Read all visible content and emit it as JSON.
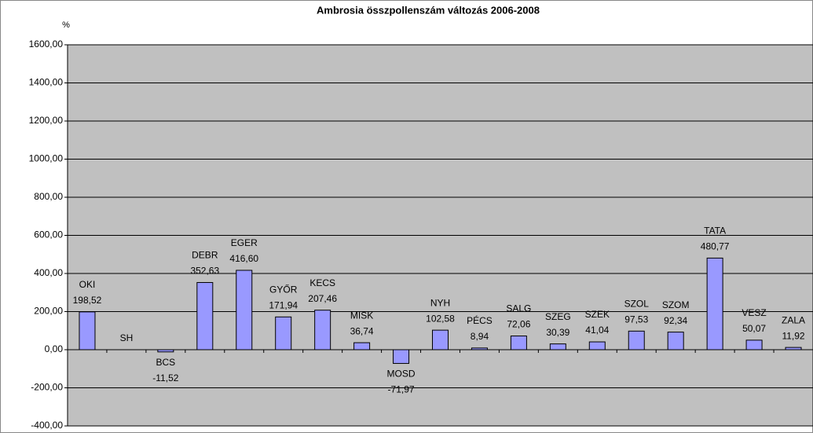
{
  "chart_data": {
    "type": "bar",
    "title": "Ambrosia összpollenszám változás 2006-2008",
    "y_axis_label": "%",
    "categories": [
      "OKI",
      "SH",
      "BCS",
      "DEBR",
      "EGER",
      "GYŐR",
      "KECS",
      "MISK",
      "MOSD",
      "NYH",
      "PÉCS",
      "SALG",
      "SZEG",
      "SZEK",
      "SZOL",
      "SZOM",
      "TATA",
      "VESZ",
      "ZALA"
    ],
    "values": [
      198.52,
      null,
      -11.52,
      352.63,
      416.6,
      171.94,
      207.46,
      36.74,
      -71.97,
      102.58,
      8.94,
      72.06,
      30.39,
      41.04,
      97.53,
      92.34,
      480.77,
      50.07,
      11.92
    ],
    "value_labels": [
      "198,52",
      null,
      "-11,52",
      "352,63",
      "416,60",
      "171,94",
      "207,46",
      "36,74",
      "-71,97",
      "102,58",
      "8,94",
      "72,06",
      "30,39",
      "41,04",
      "97,53",
      "92,34",
      "480,77",
      "50,07",
      "11,92"
    ],
    "color": "#9999ff",
    "ylim": [
      -400,
      1600
    ],
    "yticks": [
      {
        "value": -400,
        "label": "-400,00"
      },
      {
        "value": -200,
        "label": "-200,00"
      },
      {
        "value": 0,
        "label": "0,00"
      },
      {
        "value": 200,
        "label": "200,00"
      },
      {
        "value": 400,
        "label": "400,00"
      },
      {
        "value": 600,
        "label": "600,00"
      },
      {
        "value": 800,
        "label": "800,00"
      },
      {
        "value": 1000,
        "label": "1000,00"
      },
      {
        "value": 1200,
        "label": "1200,00"
      },
      {
        "value": 1400,
        "label": "1400,00"
      },
      {
        "value": 1600,
        "label": "1600,00"
      }
    ],
    "grid": true
  }
}
